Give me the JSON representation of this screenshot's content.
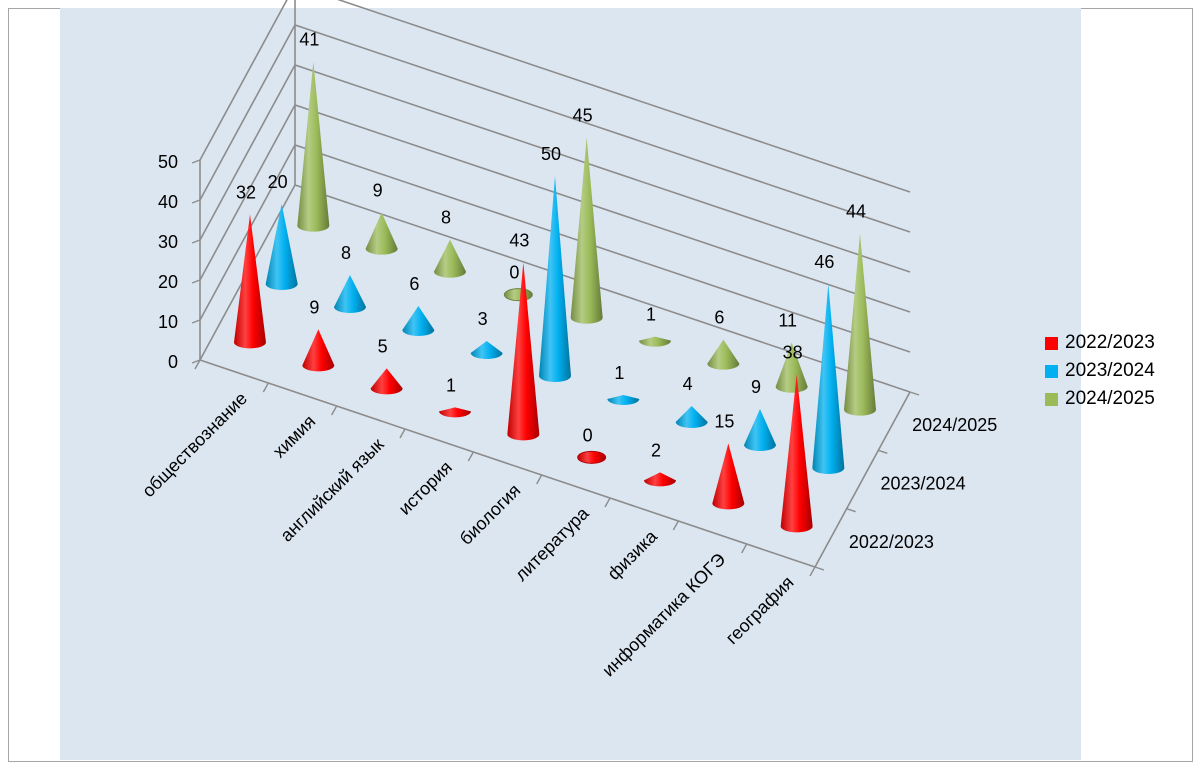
{
  "chart_data": {
    "type": "bar",
    "style": "3d-cone",
    "title": "",
    "categories": [
      "обществознание",
      "химия",
      "английский язык",
      "история",
      "биология",
      "литература",
      "физика",
      "информатика КОГЭ",
      "география"
    ],
    "series": [
      {
        "name": "2022/2023",
        "color": "#ff0000",
        "values": [
          32,
          9,
          5,
          1,
          43,
          0,
          2,
          15,
          38
        ]
      },
      {
        "name": "2023/2024",
        "color": "#00b0f0",
        "values": [
          20,
          8,
          6,
          3,
          50,
          1,
          4,
          9,
          46
        ]
      },
      {
        "name": "2024/2025",
        "color": "#9bbb59",
        "values": [
          41,
          9,
          8,
          0,
          45,
          1,
          6,
          11,
          44
        ]
      }
    ],
    "depth_labels": [
      "2024/2025",
      "2023/2024",
      "2022/2023"
    ],
    "ylim": [
      0,
      50
    ],
    "yticks": [
      "0",
      "10",
      "20",
      "30",
      "40",
      "50"
    ],
    "grid": true,
    "legend": "right"
  }
}
